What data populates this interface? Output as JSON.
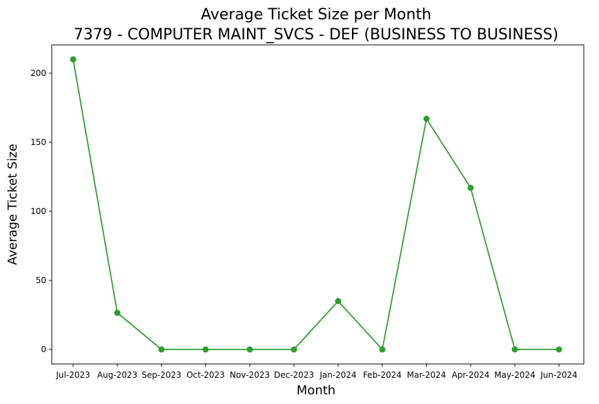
{
  "chart_data": {
    "type": "line",
    "title_line1": "Average Ticket Size per Month",
    "title_line2": "7379 - COMPUTER MAINT_SVCS - DEF (BUSINESS TO BUSINESS)",
    "xlabel": "Month",
    "ylabel": "Average Ticket Size",
    "categories": [
      "Jul-2023",
      "Aug-2023",
      "Sep-2023",
      "Oct-2023",
      "Nov-2023",
      "Dec-2023",
      "Jan-2024",
      "Feb-2024",
      "Mar-2024",
      "Apr-2024",
      "May-2024",
      "Jun-2024"
    ],
    "series": [
      {
        "values": [
          210,
          26.5,
          0,
          0,
          0,
          0,
          35,
          0,
          167,
          117,
          0,
          0
        ],
        "color": "#2ca02c"
      }
    ],
    "yticks": [
      0,
      50,
      100,
      150,
      200
    ],
    "ylim": [
      -10.5,
      220.5
    ],
    "grid": false,
    "legend": "none"
  }
}
